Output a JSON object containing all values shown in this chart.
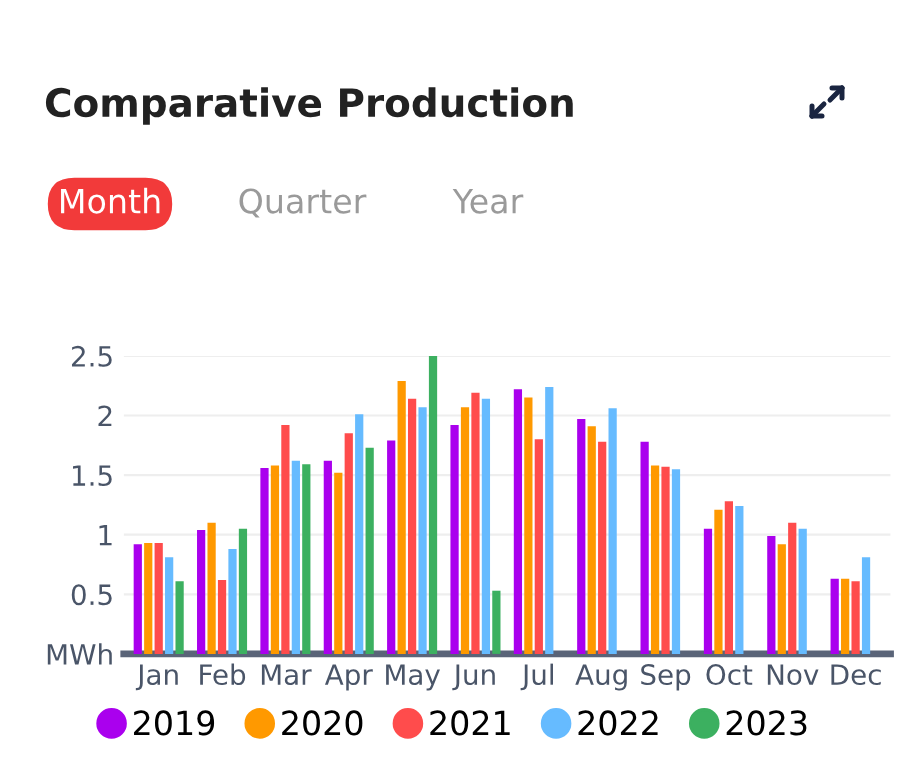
{
  "chart_data": {
    "type": "bar",
    "title": "Comparative Production",
    "annotations": [
      "Month",
      "Quarter",
      "Year"
    ],
    "categories": [
      "Jan",
      "Feb",
      "Mar",
      "Apr",
      "May",
      "Jun",
      "Jul",
      "Aug",
      "Sep",
      "Oct",
      "Nov",
      "Dec"
    ],
    "series": [
      {
        "name": "2019",
        "color": "#aa00ee",
        "values": [
          0.92,
          1.04,
          1.56,
          1.62,
          1.79,
          1.92,
          2.22,
          1.97,
          1.78,
          1.05,
          0.99,
          0.63
        ]
      },
      {
        "name": "2020",
        "color": "#ff9900",
        "values": [
          0.93,
          1.1,
          1.58,
          1.52,
          2.29,
          2.07,
          2.15,
          1.91,
          1.58,
          1.21,
          0.92,
          0.63
        ]
      },
      {
        "name": "2021",
        "color": "#ff4c4c",
        "values": [
          0.93,
          0.62,
          1.92,
          1.85,
          2.14,
          2.19,
          1.8,
          1.78,
          1.57,
          1.28,
          1.1,
          0.61
        ]
      },
      {
        "name": "2022",
        "color": "#66bbff",
        "values": [
          0.81,
          0.88,
          1.62,
          2.01,
          2.07,
          2.14,
          2.24,
          2.06,
          1.55,
          1.24,
          1.05,
          0.81
        ]
      },
      {
        "name": "2023",
        "color": "#3cb060",
        "values": [
          0.61,
          1.05,
          1.59,
          1.73,
          2.5,
          0.53,
          null,
          null,
          null,
          null,
          null,
          null
        ]
      }
    ],
    "ylim": [
      0,
      2.5
    ],
    "yticks": [
      {
        "value": 0,
        "label": "MWh"
      },
      0.5,
      1,
      1.5,
      2,
      2.5
    ],
    "grid": "y",
    "legend": "bottom"
  }
}
